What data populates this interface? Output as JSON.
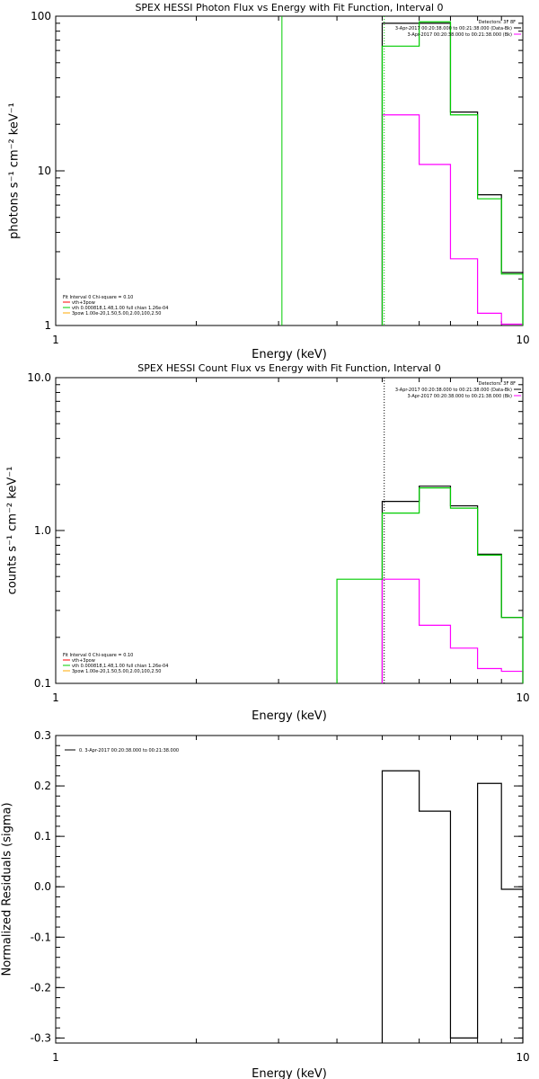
{
  "chart_data": [
    {
      "type": "line",
      "title": "SPEX HESSI Photon Flux vs Energy with Fit Function, Interval 0",
      "xlabel": "Energy (keV)",
      "ylabel": "photons s⁻¹ cm⁻² keV⁻¹",
      "xscale": "log",
      "yscale": "log",
      "xlim": [
        1,
        10
      ],
      "ylim": [
        1,
        100
      ],
      "xticks": [
        "1",
        "10"
      ],
      "yticks": [
        "1",
        "10",
        "100"
      ],
      "ylog": true,
      "legend_top": {
        "header": "Detectors: 3F 8F",
        "entries": [
          {
            "label": "3-Apr-2017 00:20:38.000 to 00:21:38.000 (Data-Bk)",
            "color": "#000000"
          },
          {
            "label": "3-Apr-2017 00:20:38.000 to 00:21:38.000 (Bk)",
            "color": "#ff00ff"
          }
        ]
      },
      "legend_fit": {
        "header": "Fit Interval 0   Chi-square = 0.10",
        "entries": [
          {
            "label": "vth+3pow",
            "color": "#ff0000"
          },
          {
            "label": "vth 0.000818,1.48,1.00  full chian 1.26e-04",
            "color": "#00cc00"
          },
          {
            "label": "3pow 1.00e-20,1.50,5.00,2.00,100,2.50",
            "color": "#ffaa00"
          }
        ]
      },
      "vlines": [
        {
          "x": 3.05,
          "color": "#00cc00",
          "style": "solid"
        },
        {
          "x": 5.05,
          "color": "#00cc00",
          "style": "dotted"
        }
      ],
      "series": [
        {
          "name": "Data-Bk",
          "color": "#000000",
          "edges": [
            5.0,
            6.0,
            7.0,
            8.0,
            9.0,
            10.0
          ],
          "values": [
            90,
            90,
            24,
            7,
            2.2
          ]
        },
        {
          "name": "Bk",
          "color": "#ff00ff",
          "edges": [
            5.0,
            6.0,
            7.0,
            8.0,
            9.0,
            10.0
          ],
          "values": [
            23,
            11,
            2.7,
            1.2,
            1.02
          ]
        },
        {
          "name": "Fit",
          "color": "#00cc00",
          "edges": [
            5.0,
            6.0,
            7.0,
            8.0,
            9.0,
            10.0
          ],
          "values": [
            64,
            92,
            23,
            6.6,
            2.15
          ]
        }
      ]
    },
    {
      "type": "line",
      "title": "SPEX HESSI Count Flux vs Energy with Fit Function, Interval 0",
      "xlabel": "Energy (keV)",
      "ylabel": "counts s⁻¹ cm⁻² keV⁻¹",
      "xscale": "log",
      "yscale": "log",
      "xlim": [
        1,
        10
      ],
      "ylim": [
        0.1,
        10
      ],
      "xticks": [
        "1",
        "10"
      ],
      "yticks": [
        "0.1",
        "1.0",
        "10.0"
      ],
      "ylog": true,
      "legend_top": {
        "header": "Detectors: 3F 8F",
        "entries": [
          {
            "label": "3-Apr-2017 00:20:38.000 to 00:21:38.000 (Data-Bk)",
            "color": "#000000"
          },
          {
            "label": "3-Apr-2017 00:20:38.000 to 00:21:38.000 (Bk)",
            "color": "#ff00ff"
          }
        ]
      },
      "legend_fit": {
        "header": "Fit Interval 0   Chi-square = 0.10",
        "entries": [
          {
            "label": "vth+3pow",
            "color": "#ff0000"
          },
          {
            "label": "vth 0.000818,1.48,1.00  full chian 1.26e-04",
            "color": "#00cc00"
          },
          {
            "label": "3pow 1.00e-20,1.50,5.00,2.00,100,2.50",
            "color": "#ffaa00"
          }
        ]
      },
      "vlines": [
        {
          "x": 5.05,
          "color": "#000000",
          "style": "dotted"
        }
      ],
      "series": [
        {
          "name": "Data-Bk",
          "color": "#000000",
          "edges": [
            5.0,
            6.0,
            7.0,
            8.0,
            9.0,
            10.0
          ],
          "values": [
            1.55,
            1.95,
            1.45,
            0.7,
            0.27
          ]
        },
        {
          "name": "Bk",
          "color": "#ff00ff",
          "edges": [
            5.0,
            6.0,
            7.0,
            8.0,
            9.0,
            10.0
          ],
          "values": [
            0.48,
            0.24,
            0.17,
            0.125,
            0.12
          ]
        },
        {
          "name": "Fit",
          "color": "#00cc00",
          "edges": [
            4.0,
            5.0,
            6.0,
            7.0,
            8.0,
            9.0,
            10.0
          ],
          "values": [
            0.48,
            1.3,
            1.9,
            1.4,
            0.69,
            0.27
          ]
        }
      ]
    },
    {
      "type": "line",
      "title": "",
      "xlabel": "Energy (keV)",
      "ylabel": "Normalized Residuals (sigma)",
      "xscale": "log",
      "yscale": "linear",
      "xlim": [
        1,
        10
      ],
      "ylim": [
        -0.31,
        0.3
      ],
      "xticks": [
        "1",
        "10"
      ],
      "yticks": [
        "-0.3",
        "-0.2",
        "-0.1",
        "0.0",
        "0.1",
        "0.2",
        "0.3"
      ],
      "ylog": false,
      "legend_top": {
        "header": "",
        "entries": [
          {
            "label": "0. 3-Apr-2017 00:20:38.000 to 00:21:38.000",
            "color": "#000000"
          }
        ]
      },
      "series": [
        {
          "name": "Residuals",
          "color": "#000000",
          "edges": [
            5.0,
            6.0,
            7.0,
            8.0,
            9.0,
            10.0
          ],
          "values": [
            0.23,
            0.15,
            -0.3,
            0.205,
            -0.005
          ]
        }
      ]
    }
  ]
}
